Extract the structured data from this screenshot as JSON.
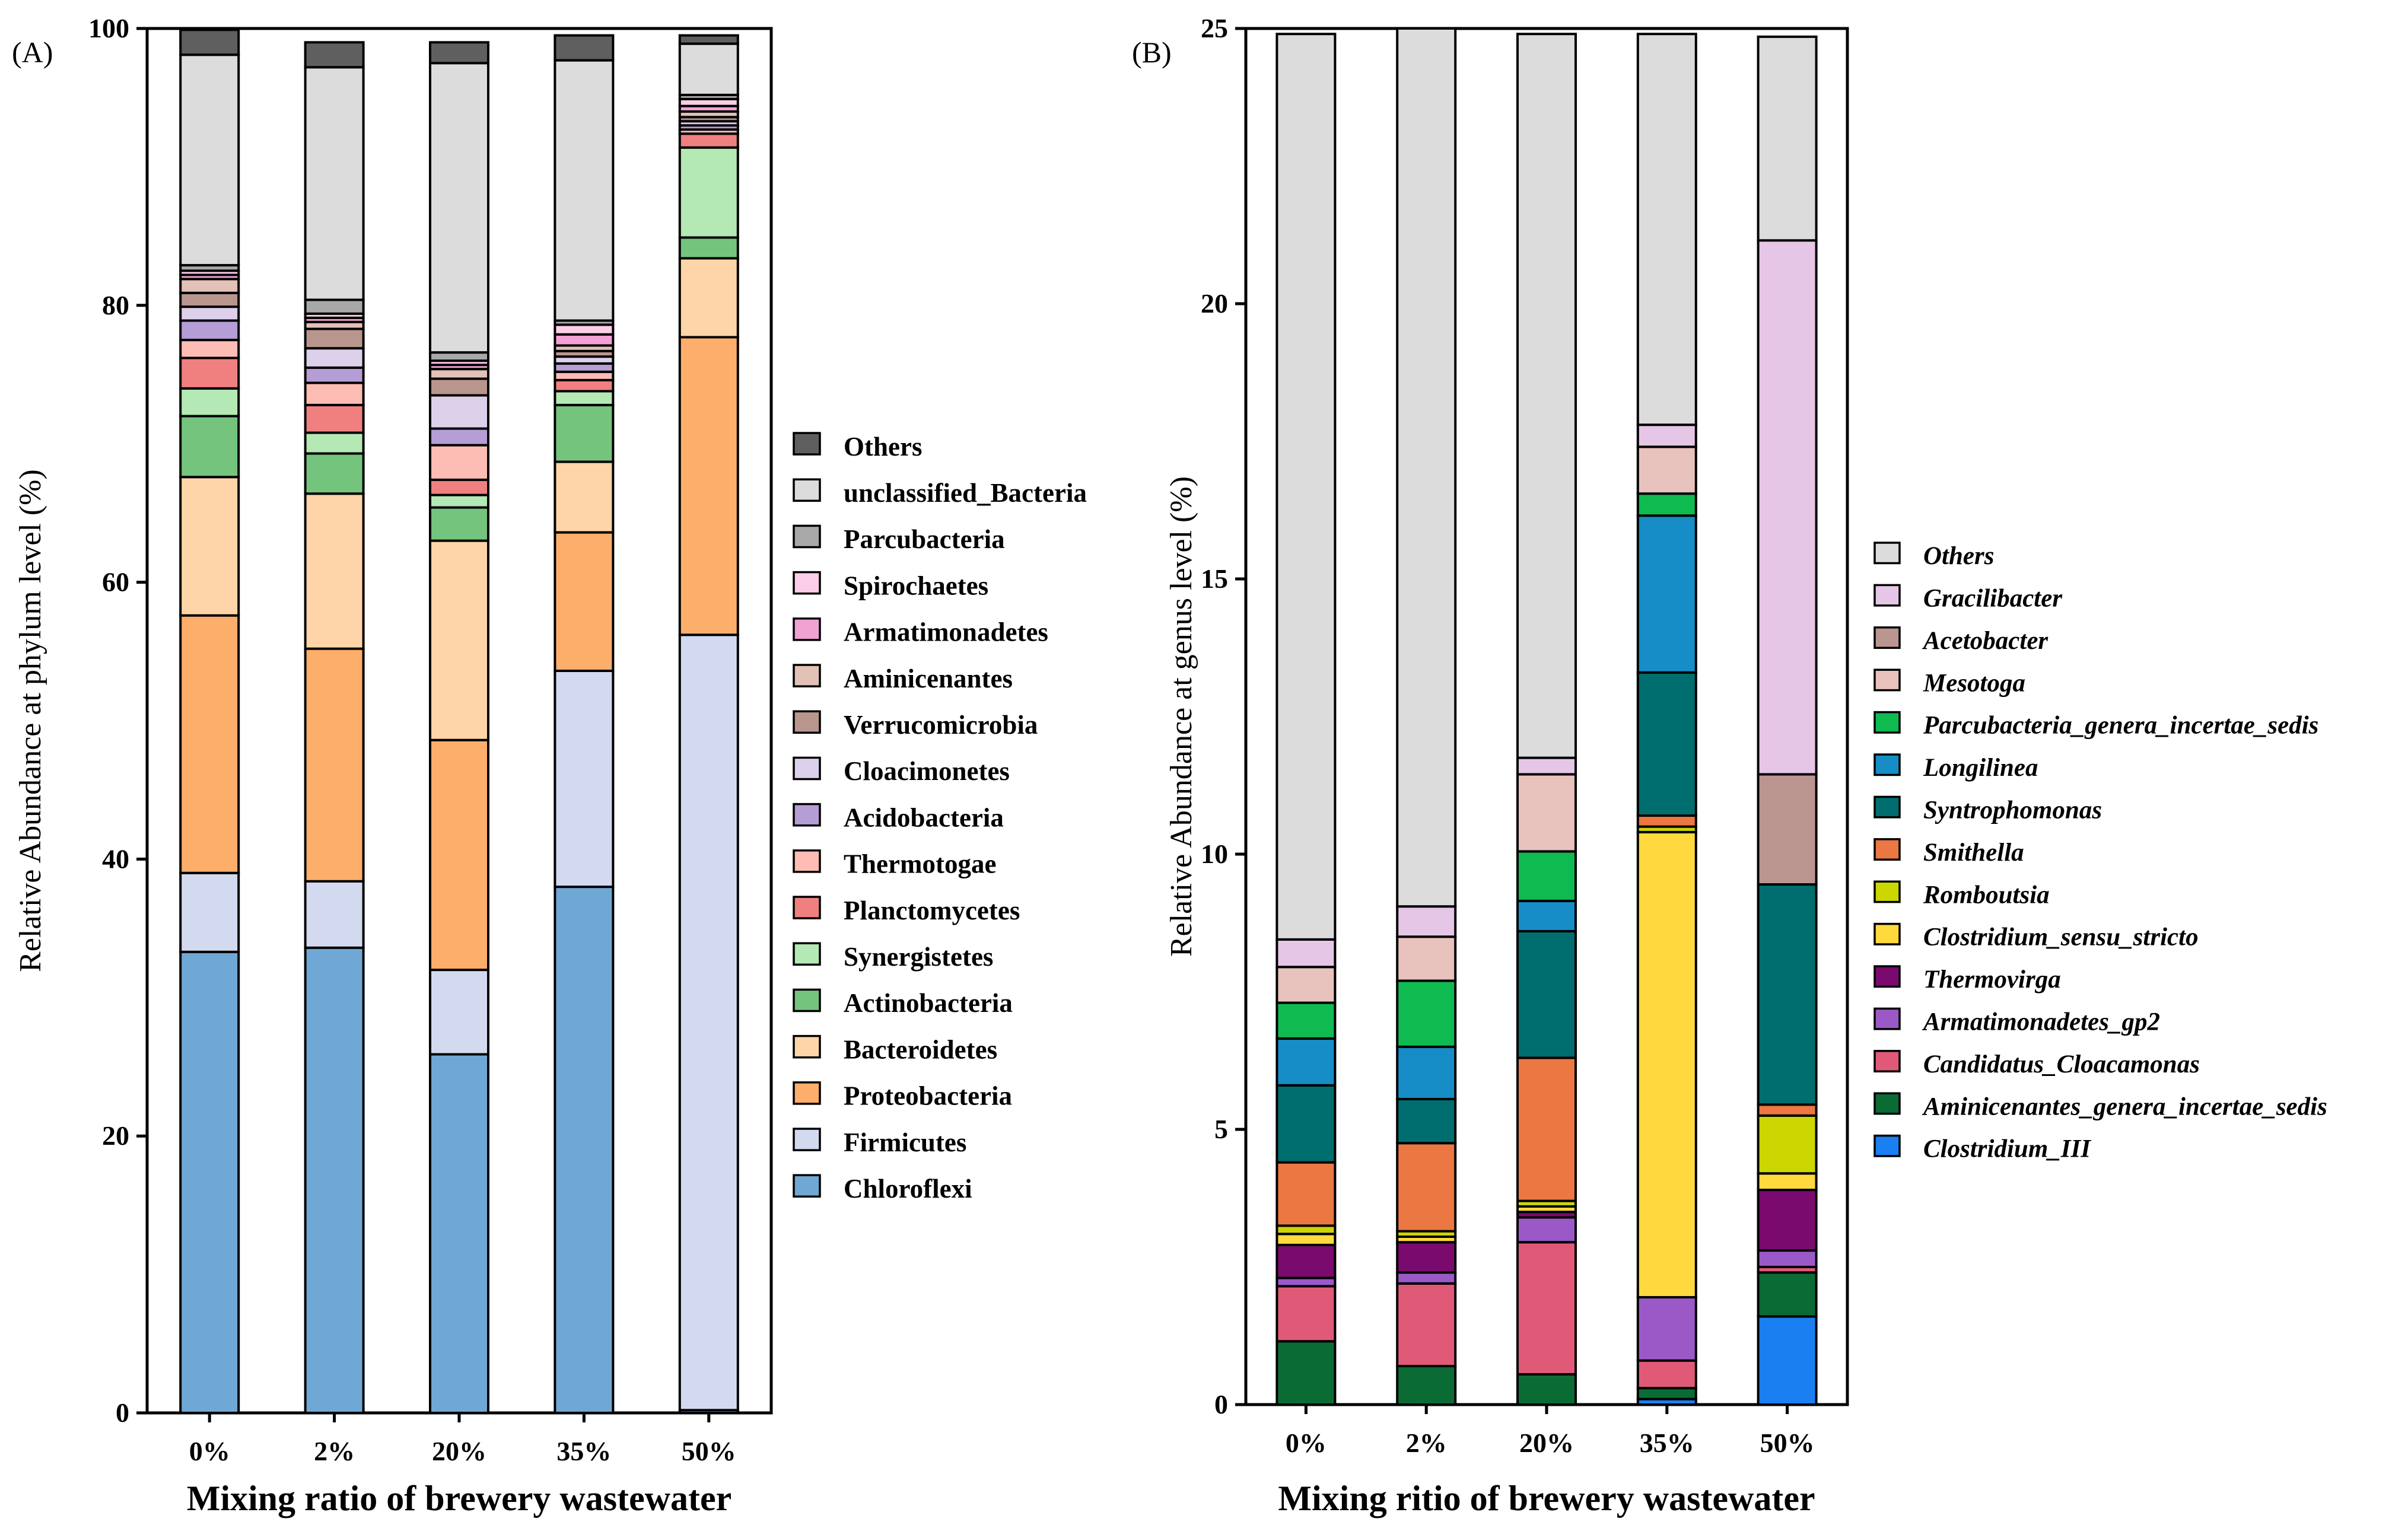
{
  "chart_data": [
    {
      "panel_label": "(A)",
      "type": "bar",
      "stacked": true,
      "xlabel": "Mixing ratio of brewery wastewater",
      "ylabel": "Relative Abundance at phylum level (%)",
      "ylim": [
        0,
        100
      ],
      "yticks": [
        "0",
        "20",
        "40",
        "60",
        "80",
        "100"
      ],
      "categories": [
        "0%",
        "2%",
        "20%",
        "35%",
        "50%"
      ],
      "legend_italic": false,
      "series": [
        {
          "name": "Chloroflexi",
          "color": "#6FA8D4",
          "values": [
            33.3,
            33.6,
            25.9,
            38.0,
            0.2
          ]
        },
        {
          "name": "Firmicutes",
          "color": "#D3DAF0",
          "values": [
            5.7,
            4.8,
            6.1,
            15.6,
            56.0
          ]
        },
        {
          "name": "Proteobacteria",
          "color": "#FDAE6B",
          "values": [
            18.6,
            16.8,
            16.6,
            10.0,
            21.5
          ]
        },
        {
          "name": "Bacteroidetes",
          "color": "#FDD5A8",
          "values": [
            10.0,
            11.2,
            14.4,
            5.1,
            5.7
          ]
        },
        {
          "name": "Actinobacteria",
          "color": "#74C47E",
          "values": [
            4.4,
            2.9,
            2.4,
            4.1,
            1.5
          ]
        },
        {
          "name": "Synergistetes",
          "color": "#B4E8B4",
          "values": [
            2.0,
            1.5,
            0.9,
            1.0,
            6.5
          ]
        },
        {
          "name": "Planctomycetes",
          "color": "#F08080",
          "values": [
            2.2,
            2.0,
            1.1,
            0.8,
            1.0
          ]
        },
        {
          "name": "Thermotogae",
          "color": "#FDBCB4",
          "values": [
            1.3,
            1.6,
            2.5,
            0.6,
            0.3
          ]
        },
        {
          "name": "Acidobacteria",
          "color": "#B59DD6",
          "values": [
            1.4,
            1.1,
            1.2,
            0.6,
            0.3
          ]
        },
        {
          "name": "Cloacimonetes",
          "color": "#DCD0EA",
          "values": [
            1.0,
            1.4,
            2.4,
            0.5,
            0.3
          ]
        },
        {
          "name": "Verrucomicrobia",
          "color": "#B8968E",
          "values": [
            1.0,
            1.4,
            1.2,
            0.4,
            0.3
          ]
        },
        {
          "name": "Aminicenantes",
          "color": "#E2C1B7",
          "values": [
            1.0,
            0.5,
            0.7,
            0.4,
            0.4
          ]
        },
        {
          "name": "Armatimonadetes",
          "color": "#F2A1D4",
          "values": [
            0.3,
            0.3,
            0.3,
            0.8,
            0.4
          ]
        },
        {
          "name": "Spirochaetes",
          "color": "#FBCDE8",
          "values": [
            0.3,
            0.3,
            0.3,
            0.7,
            0.5
          ]
        },
        {
          "name": "Parcubacteria",
          "color": "#A8A8A8",
          "values": [
            0.4,
            1.0,
            0.6,
            0.3,
            0.3
          ]
        },
        {
          "name": "unclassified_Bacteria",
          "color": "#DCDCDC",
          "values": [
            15.2,
            16.8,
            20.9,
            18.8,
            3.7
          ]
        },
        {
          "name": "Others",
          "color": "#5F5F5F",
          "values": [
            1.8,
            1.8,
            1.5,
            1.8,
            0.6
          ]
        }
      ]
    },
    {
      "panel_label": "(B)",
      "type": "bar",
      "stacked": true,
      "xlabel": "Mixing ritio of brewery wastewater",
      "ylabel": "Relative Abundance at genus level (%)",
      "ylim": [
        0,
        25
      ],
      "yticks": [
        "0",
        "5",
        "10",
        "15",
        "20",
        "25"
      ],
      "categories": [
        "0%",
        "2%",
        "20%",
        "35%",
        "50%"
      ],
      "legend_italic": true,
      "series": [
        {
          "name": "Clostridium_III",
          "color": "#1A7FF0",
          "values": [
            0.0,
            0.0,
            0.0,
            0.1,
            1.6
          ]
        },
        {
          "name": "Aminicenantes_genera_incertae_sedis",
          "color": "#0B6B35",
          "values": [
            1.15,
            0.7,
            0.55,
            0.2,
            0.8
          ]
        },
        {
          "name": "Candidatus_Cloacamonas",
          "color": "#E05A78",
          "values": [
            1.0,
            1.5,
            2.4,
            0.5,
            0.1
          ]
        },
        {
          "name": "Armatimonadetes_gp2",
          "color": "#9B59C8",
          "values": [
            0.15,
            0.2,
            0.45,
            1.15,
            0.3
          ]
        },
        {
          "name": "Thermovirga",
          "color": "#7A0A6E",
          "values": [
            0.6,
            0.55,
            0.1,
            0.0,
            1.1
          ]
        },
        {
          "name": "Clostridium_sensu_stricto",
          "color": "#FFD93D",
          "values": [
            0.2,
            0.1,
            0.1,
            8.45,
            0.3
          ]
        },
        {
          "name": "Romboutsia",
          "color": "#CCD600",
          "values": [
            0.15,
            0.1,
            0.1,
            0.1,
            1.05
          ]
        },
        {
          "name": "Smithella",
          "color": "#EB7742",
          "values": [
            1.15,
            1.6,
            2.6,
            0.2,
            0.2
          ]
        },
        {
          "name": "Syntrophomonas",
          "color": "#006E6E",
          "values": [
            1.4,
            0.8,
            2.3,
            2.6,
            4.0
          ]
        },
        {
          "name": "Longilinea",
          "color": "#168DC6",
          "values": [
            0.85,
            0.95,
            0.55,
            2.85,
            0.0
          ]
        },
        {
          "name": "Parcubacteria_genera_incertae_sedis",
          "color": "#0FBA50",
          "values": [
            0.65,
            1.2,
            0.9,
            0.4,
            0.0
          ]
        },
        {
          "name": "Mesotoga",
          "color": "#E8C2BC",
          "values": [
            0.65,
            0.8,
            1.4,
            0.85,
            0.0
          ]
        },
        {
          "name": "Acetobacter",
          "color": "#BB9590",
          "values": [
            0.0,
            0.0,
            0.0,
            0.0,
            2.0
          ]
        },
        {
          "name": "Gracilibacter",
          "color": "#E6C6E6",
          "values": [
            0.5,
            0.55,
            0.3,
            0.4,
            9.7
          ]
        },
        {
          "name": "Others",
          "color": "#DCDCDC",
          "values": [
            16.45,
            15.95,
            13.15,
            7.1,
            3.7
          ]
        }
      ]
    }
  ]
}
